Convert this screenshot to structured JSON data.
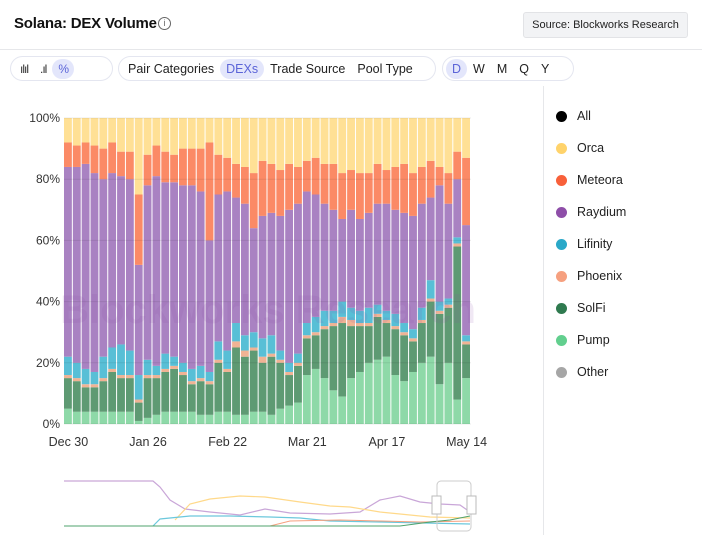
{
  "header": {
    "title": "Solana: DEX Volume",
    "source_label": "Source: Blockworks Research"
  },
  "toolbar": {
    "chart_modes": [
      {
        "icon": "bar-chart-icon",
        "active": false
      },
      {
        "icon": "stacked-bar-icon",
        "active": false
      },
      {
        "icon": "percent-icon",
        "active": true
      }
    ],
    "groupings": [
      {
        "label": "Pair Categories",
        "active": false
      },
      {
        "label": "DEXs",
        "active": true
      },
      {
        "label": "Trade Source",
        "active": false
      },
      {
        "label": "Pool Type",
        "active": false
      }
    ],
    "intervals": [
      {
        "label": "D",
        "active": true
      },
      {
        "label": "W",
        "active": false
      },
      {
        "label": "M",
        "active": false
      },
      {
        "label": "Q",
        "active": false
      },
      {
        "label": "Y",
        "active": false
      }
    ]
  },
  "watermark": "Blockworks Research",
  "legend": [
    {
      "label": "All",
      "color": "#000000"
    },
    {
      "label": "Orca",
      "color": "#ffd36b"
    },
    {
      "label": "Meteora",
      "color": "#f8603a"
    },
    {
      "label": "Raydium",
      "color": "#8e4ea8"
    },
    {
      "label": "Lifinity",
      "color": "#2aa8c8"
    },
    {
      "label": "Phoenix",
      "color": "#f6a07f"
    },
    {
      "label": "SolFi",
      "color": "#2f7a4f"
    },
    {
      "label": "Pump",
      "color": "#62cf8e"
    },
    {
      "label": "Other",
      "color": "#a6a6a6"
    }
  ],
  "chart_data": {
    "type": "bar",
    "stacked": "percent",
    "title": "",
    "xlabel": "",
    "ylabel": "",
    "ylim": [
      0,
      100
    ],
    "yticks": [
      "0%",
      "20%",
      "40%",
      "60%",
      "80%",
      "100%"
    ],
    "xticks": [
      "Dec 30",
      "Jan 26",
      "Feb 22",
      "Mar 21",
      "Apr 17",
      "May 14"
    ],
    "grid": true,
    "legend_position": "right",
    "categories": [
      "Dec 30",
      "Jan 2",
      "Jan 5",
      "Jan 8",
      "Jan 11",
      "Jan 14",
      "Jan 17",
      "Jan 20",
      "Jan 23",
      "Jan 26",
      "Jan 29",
      "Feb 1",
      "Feb 4",
      "Feb 7",
      "Feb 10",
      "Feb 13",
      "Feb 16",
      "Feb 19",
      "Feb 22",
      "Feb 25",
      "Feb 28",
      "Mar 3",
      "Mar 6",
      "Mar 9",
      "Mar 12",
      "Mar 15",
      "Mar 18",
      "Mar 21",
      "Mar 24",
      "Mar 27",
      "Mar 30",
      "Apr 2",
      "Apr 5",
      "Apr 8",
      "Apr 11",
      "Apr 14",
      "Apr 17",
      "Apr 20",
      "Apr 23",
      "Apr 26",
      "Apr 29",
      "May 2",
      "May 5",
      "May 8",
      "May 11",
      "May 14"
    ],
    "series": [
      {
        "name": "Pump",
        "color": "#8ed9a8",
        "values": [
          5,
          4,
          4,
          4,
          4,
          4,
          4,
          4,
          1,
          2,
          3,
          4,
          4,
          4,
          4,
          3,
          3,
          4,
          4,
          3,
          3,
          4,
          4,
          3,
          5,
          6,
          7,
          16,
          18,
          15,
          11,
          9,
          15,
          17,
          20,
          21,
          22,
          16,
          14,
          17,
          20,
          22,
          13,
          20,
          8,
          15
        ]
      },
      {
        "name": "SolFi",
        "color": "#5e9a73",
        "values": [
          10,
          10,
          8,
          8,
          10,
          13,
          11,
          11,
          6,
          13,
          12,
          13,
          14,
          12,
          9,
          11,
          10,
          16,
          13,
          22,
          19,
          20,
          16,
          19,
          15,
          10,
          12,
          12,
          11,
          16,
          21,
          24,
          17,
          15,
          12,
          14,
          11,
          15,
          15,
          10,
          13,
          18,
          23,
          18,
          50,
          11
        ]
      },
      {
        "name": "Phoenix",
        "color": "#f0b394",
        "values": [
          1,
          1,
          1,
          1,
          1,
          1,
          1,
          1,
          1,
          1,
          1,
          1,
          1,
          1,
          1,
          1,
          1,
          1,
          1,
          2,
          2,
          1,
          2,
          1,
          1,
          1,
          1,
          1,
          1,
          1,
          1,
          2,
          2,
          1,
          1,
          1,
          1,
          1,
          1,
          1,
          1,
          1,
          1,
          1,
          1,
          1
        ]
      },
      {
        "name": "Lifinity",
        "color": "#58bfd6",
        "values": [
          6,
          5,
          5,
          4,
          7,
          7,
          10,
          8,
          8,
          5,
          3,
          5,
          3,
          3,
          4,
          4,
          3,
          6,
          6,
          6,
          5,
          5,
          6,
          6,
          3,
          3,
          3,
          4,
          5,
          5,
          4,
          5,
          4,
          4,
          5,
          3,
          3,
          4,
          3,
          3,
          4,
          6,
          3,
          2,
          2,
          2
        ]
      },
      {
        "name": "Raydium",
        "color": "#a982c2",
        "values": [
          62,
          64,
          67,
          65,
          58,
          57,
          55,
          56,
          36,
          57,
          62,
          56,
          57,
          58,
          60,
          57,
          43,
          48,
          52,
          41,
          43,
          34,
          40,
          40,
          44,
          50,
          49,
          43,
          40,
          35,
          33,
          27,
          32,
          30,
          31,
          33,
          35,
          34,
          36,
          37,
          34,
          27,
          38,
          31,
          19,
          36
        ]
      },
      {
        "name": "Meteora",
        "color": "#fb8a66",
        "values": [
          8,
          7,
          7,
          9,
          10,
          10,
          8,
          9,
          23,
          10,
          10,
          10,
          9,
          12,
          12,
          14,
          32,
          13,
          11,
          11,
          12,
          18,
          18,
          16,
          15,
          15,
          12,
          10,
          12,
          13,
          15,
          15,
          13,
          15,
          13,
          13,
          11,
          14,
          16,
          14,
          12,
          12,
          6,
          10,
          9,
          22
        ]
      },
      {
        "name": "Orca",
        "color": "#ffe095",
        "values": [
          8,
          9,
          8,
          9,
          10,
          8,
          11,
          11,
          25,
          12,
          9,
          11,
          12,
          10,
          10,
          10,
          8,
          12,
          13,
          15,
          16,
          18,
          14,
          15,
          17,
          15,
          16,
          14,
          13,
          15,
          15,
          18,
          17,
          18,
          18,
          15,
          17,
          16,
          15,
          18,
          16,
          14,
          16,
          18,
          11,
          13
        ]
      }
    ]
  }
}
